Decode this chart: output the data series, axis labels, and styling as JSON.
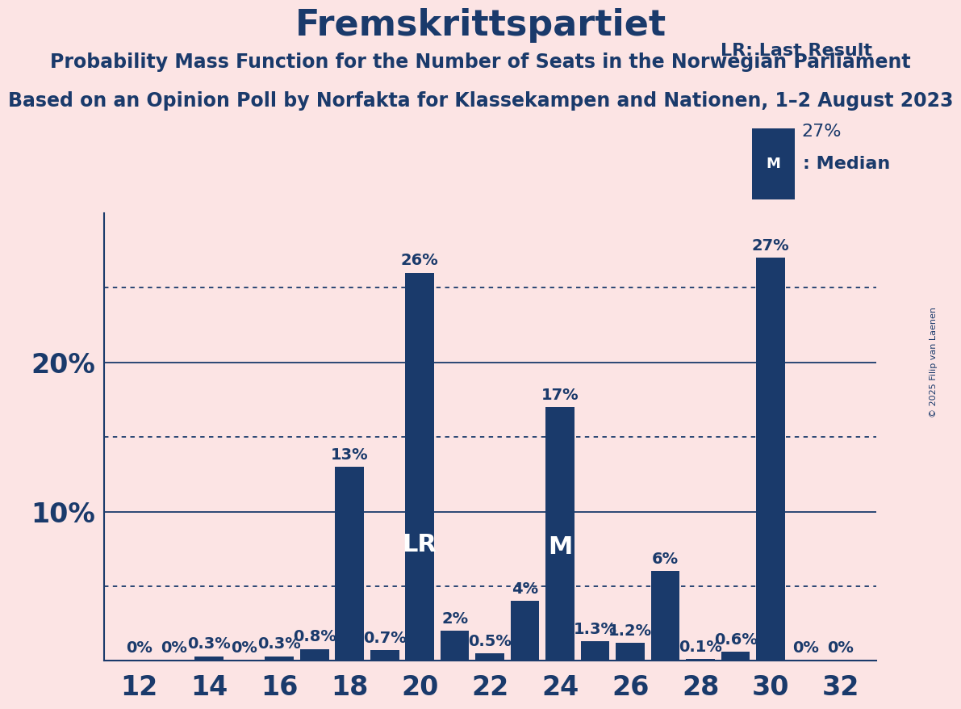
{
  "title": "Fremskrittspartiet",
  "subtitle1": "Probability Mass Function for the Number of Seats in the Norwegian Parliament",
  "subtitle2": "Based on an Opinion Poll by Norfakta for Klassekampen and Nationen, 1–2 August 2023",
  "copyright": "© 2025 Filip van Laenen",
  "background_color": "#fce4e4",
  "bar_color": "#1a3a6b",
  "text_color": "#1a3a6b",
  "seats": [
    12,
    13,
    14,
    15,
    16,
    17,
    18,
    19,
    20,
    21,
    22,
    23,
    24,
    25,
    26,
    27,
    28,
    29,
    30,
    31,
    32
  ],
  "probabilities": [
    0.0,
    0.0,
    0.3,
    0.0,
    0.3,
    0.8,
    13.0,
    0.7,
    26.0,
    2.0,
    0.5,
    4.0,
    17.0,
    1.3,
    1.2,
    6.0,
    0.1,
    0.6,
    27.0,
    0.0,
    0.0
  ],
  "labels": [
    "0%",
    "0%",
    "0.3%",
    "0%",
    "0.3%",
    "0.8%",
    "13%",
    "0.7%",
    "26%",
    "2%",
    "0.5%",
    "4%",
    "17%",
    "1.3%",
    "1.2%",
    "6%",
    "0.1%",
    "0.6%",
    "27%",
    "0%",
    "0%"
  ],
  "lr_seat": 20,
  "median_seat": 24,
  "lr_label": "LR",
  "median_label": "M",
  "legend_lr": "LR: Last Result",
  "legend_lr_pct": "27%",
  "legend_m": "M: Median",
  "ylim_max": 30,
  "xtick_positions": [
    12,
    14,
    16,
    18,
    20,
    22,
    24,
    26,
    28,
    30,
    32
  ],
  "title_fontsize": 32,
  "subtitle_fontsize": 17,
  "bar_label_fontsize": 14,
  "axis_label_fontsize": 24,
  "inside_label_fontsize": 22,
  "legend_fontsize": 16
}
